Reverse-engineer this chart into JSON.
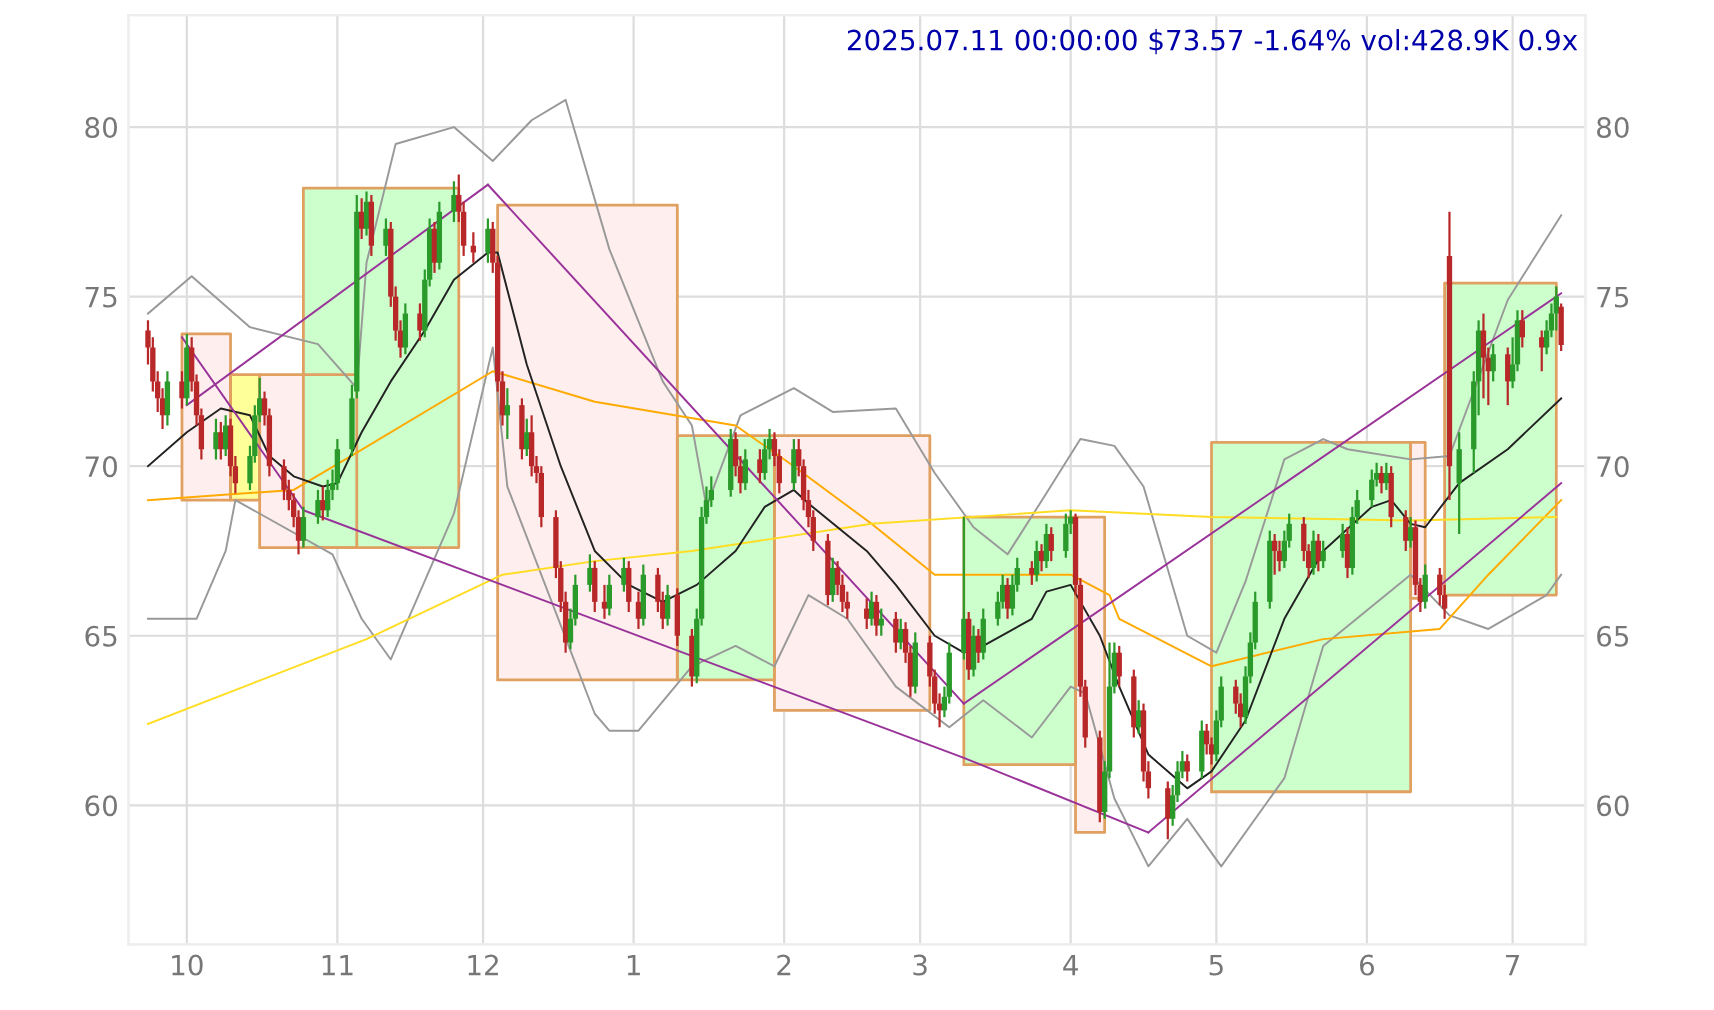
{
  "chart_data": {
    "type": "candlestick",
    "title": "2025.07.11 00:00:00 $73.57 -1.64% vol:428.9K 0.9x",
    "x": [
      "2024-09-23",
      "2024-09-24",
      "2024-09-25",
      "2024-09-26",
      "2024-09-27",
      "2024-09-30",
      "2024-10-01",
      "2024-10-02",
      "2024-10-03",
      "2024-10-04",
      "2024-10-07",
      "2024-10-08",
      "2024-10-09",
      "2024-10-10",
      "2024-10-11",
      "2024-10-14",
      "2024-10-15",
      "2024-10-16",
      "2024-10-17",
      "2024-10-18",
      "2024-10-21",
      "2024-10-22",
      "2024-10-23",
      "2024-10-24",
      "2024-10-25",
      "2024-10-28",
      "2024-10-29",
      "2024-10-30",
      "2024-10-31",
      "2024-11-01",
      "2024-11-04",
      "2024-11-05",
      "2024-11-06",
      "2024-11-07",
      "2024-11-08",
      "2024-11-11",
      "2024-11-12",
      "2024-11-13",
      "2024-11-14",
      "2024-11-15",
      "2024-11-18",
      "2024-11-19",
      "2024-11-20",
      "2024-11-21",
      "2024-11-22",
      "2024-11-25",
      "2024-11-26",
      "2024-11-27",
      "2024-11-29",
      "2024-12-02",
      "2024-12-03",
      "2024-12-04",
      "2024-12-05",
      "2024-12-06",
      "2024-12-09",
      "2024-12-10",
      "2024-12-11",
      "2024-12-12",
      "2024-12-13",
      "2024-12-16",
      "2024-12-17",
      "2024-12-18",
      "2024-12-19",
      "2024-12-20",
      "2024-12-23",
      "2024-12-24",
      "2024-12-26",
      "2024-12-27",
      "2024-12-30",
      "2024-12-31",
      "2025-01-02",
      "2025-01-03",
      "2025-01-06",
      "2025-01-07",
      "2025-01-08",
      "2025-01-10",
      "2025-01-13",
      "2025-01-14",
      "2025-01-15",
      "2025-01-16",
      "2025-01-17",
      "2025-01-21",
      "2025-01-22",
      "2025-01-23",
      "2025-01-24",
      "2025-01-27",
      "2025-01-28",
      "2025-01-29",
      "2025-01-30",
      "2025-01-31",
      "2025-02-03",
      "2025-02-04",
      "2025-02-05",
      "2025-02-06",
      "2025-02-07",
      "2025-02-10",
      "2025-02-11",
      "2025-02-12",
      "2025-02-13",
      "2025-02-14",
      "2025-02-18",
      "2025-02-19",
      "2025-02-20",
      "2025-02-21",
      "2025-02-24",
      "2025-02-25",
      "2025-02-26",
      "2025-02-27",
      "2025-02-28",
      "2025-03-03",
      "2025-03-04",
      "2025-03-05",
      "2025-03-06",
      "2025-03-07",
      "2025-03-10",
      "2025-03-11",
      "2025-03-12",
      "2025-03-13",
      "2025-03-14",
      "2025-03-17",
      "2025-03-18",
      "2025-03-19",
      "2025-03-20",
      "2025-03-21",
      "2025-03-24",
      "2025-03-25",
      "2025-03-26",
      "2025-03-27",
      "2025-03-28",
      "2025-03-31",
      "2025-04-01",
      "2025-04-02",
      "2025-04-03",
      "2025-04-04",
      "2025-04-07",
      "2025-04-08",
      "2025-04-09",
      "2025-04-10",
      "2025-04-11",
      "2025-04-14",
      "2025-04-15",
      "2025-04-16",
      "2025-04-17",
      "2025-04-21",
      "2025-04-22",
      "2025-04-23",
      "2025-04-24",
      "2025-04-25",
      "2025-04-28",
      "2025-04-29",
      "2025-04-30",
      "2025-05-01",
      "2025-05-02",
      "2025-05-05",
      "2025-05-06",
      "2025-05-07",
      "2025-05-08",
      "2025-05-09",
      "2025-05-12",
      "2025-05-13",
      "2025-05-14",
      "2025-05-15",
      "2025-05-16",
      "2025-05-19",
      "2025-05-20",
      "2025-05-21",
      "2025-05-22",
      "2025-05-23",
      "2025-05-27",
      "2025-05-28",
      "2025-05-29",
      "2025-05-30",
      "2025-06-02",
      "2025-06-03",
      "2025-06-04",
      "2025-06-05",
      "2025-06-06",
      "2025-06-09",
      "2025-06-10",
      "2025-06-11",
      "2025-06-12",
      "2025-06-13",
      "2025-06-16",
      "2025-06-17",
      "2025-06-18",
      "2025-06-20",
      "2025-06-23",
      "2025-06-24",
      "2025-06-25",
      "2025-06-26",
      "2025-06-27",
      "2025-06-30",
      "2025-07-01",
      "2025-07-02",
      "2025-07-03",
      "2025-07-07",
      "2025-07-08",
      "2025-07-09",
      "2025-07-10",
      "2025-07-11"
    ],
    "ohlc": [
      [
        74.0,
        74.3,
        73.0,
        73.5
      ],
      [
        73.5,
        73.8,
        72.2,
        72.5
      ],
      [
        72.5,
        72.8,
        71.6,
        72.0
      ],
      [
        72.0,
        72.3,
        71.1,
        71.5
      ],
      [
        71.5,
        72.8,
        71.2,
        72.5
      ],
      [
        72.5,
        72.8,
        71.7,
        72.0
      ],
      [
        72.0,
        73.9,
        71.8,
        73.5
      ],
      [
        73.5,
        73.8,
        72.2,
        72.5
      ],
      [
        72.5,
        72.7,
        71.2,
        71.5
      ],
      [
        71.5,
        71.7,
        70.2,
        70.5
      ],
      [
        70.5,
        71.4,
        70.2,
        71.0
      ],
      [
        71.0,
        71.3,
        70.2,
        70.5
      ],
      [
        70.5,
        71.5,
        70.3,
        71.2
      ],
      [
        71.2,
        71.4,
        69.7,
        70.0
      ],
      [
        70.0,
        70.3,
        69.2,
        69.5
      ],
      [
        69.5,
        70.6,
        69.3,
        70.3
      ],
      [
        70.3,
        71.8,
        70.1,
        71.5
      ],
      [
        71.5,
        72.6,
        71.3,
        72.0
      ],
      [
        72.0,
        72.2,
        71.2,
        71.5
      ],
      [
        71.5,
        71.7,
        69.7,
        70.0
      ],
      [
        70.0,
        70.2,
        69.0,
        69.3
      ],
      [
        69.3,
        69.6,
        68.7,
        69.0
      ],
      [
        69.0,
        69.2,
        68.2,
        68.5
      ],
      [
        68.5,
        68.7,
        67.4,
        67.8
      ],
      [
        67.8,
        68.8,
        67.6,
        68.5
      ],
      [
        68.5,
        69.3,
        68.3,
        69.0
      ],
      [
        69.0,
        69.4,
        68.4,
        68.7
      ],
      [
        68.7,
        69.6,
        68.5,
        69.3
      ],
      [
        69.3,
        69.9,
        69.0,
        69.5
      ],
      [
        69.5,
        70.8,
        69.3,
        70.5
      ],
      [
        70.5,
        72.4,
        70.3,
        72.0
      ],
      [
        72.2,
        78.0,
        72.0,
        77.5
      ],
      [
        77.5,
        77.9,
        76.7,
        77.0
      ],
      [
        77.0,
        78.1,
        76.8,
        77.8
      ],
      [
        77.8,
        78.0,
        76.2,
        76.5
      ],
      [
        76.5,
        77.3,
        76.2,
        77.0
      ],
      [
        77.0,
        77.2,
        74.7,
        75.0
      ],
      [
        75.0,
        75.3,
        73.7,
        74.0
      ],
      [
        74.0,
        74.3,
        73.2,
        73.5
      ],
      [
        73.5,
        74.8,
        73.3,
        74.5
      ],
      [
        74.5,
        74.8,
        73.7,
        74.0
      ],
      [
        74.0,
        75.8,
        73.8,
        75.5
      ],
      [
        75.5,
        77.3,
        75.3,
        77.0
      ],
      [
        77.0,
        77.2,
        75.7,
        76.0
      ],
      [
        76.0,
        77.8,
        75.8,
        77.5
      ],
      [
        77.5,
        78.4,
        77.2,
        78.0
      ],
      [
        78.0,
        78.6,
        77.2,
        77.5
      ],
      [
        77.5,
        77.8,
        76.2,
        76.5
      ],
      [
        76.5,
        76.9,
        76.0,
        76.3
      ],
      [
        76.3,
        77.3,
        76.0,
        77.0
      ],
      [
        77.0,
        77.2,
        75.7,
        76.0
      ],
      [
        76.0,
        76.2,
        72.2,
        72.5
      ],
      [
        72.5,
        72.8,
        71.2,
        71.5
      ],
      [
        71.5,
        72.3,
        70.8,
        71.8
      ],
      [
        71.8,
        72.0,
        70.2,
        70.5
      ],
      [
        70.5,
        71.4,
        70.3,
        71.0
      ],
      [
        71.0,
        71.5,
        69.7,
        70.0
      ],
      [
        70.0,
        70.3,
        69.5,
        69.8
      ],
      [
        69.8,
        70.0,
        68.2,
        68.5
      ],
      [
        68.5,
        68.7,
        66.7,
        67.0
      ],
      [
        67.0,
        67.2,
        65.7,
        66.0
      ],
      [
        66.0,
        66.3,
        64.5,
        64.8
      ],
      [
        64.8,
        65.8,
        64.6,
        65.5
      ],
      [
        65.5,
        66.8,
        65.3,
        66.5
      ],
      [
        66.5,
        67.4,
        66.3,
        67.0
      ],
      [
        67.0,
        67.2,
        65.7,
        66.0
      ],
      [
        66.0,
        66.5,
        65.5,
        65.8
      ],
      [
        65.8,
        66.8,
        65.6,
        66.5
      ],
      [
        66.5,
        67.3,
        66.3,
        67.0
      ],
      [
        67.0,
        67.2,
        65.7,
        66.0
      ],
      [
        66.0,
        66.3,
        65.2,
        65.5
      ],
      [
        65.5,
        67.1,
        65.3,
        66.8
      ],
      [
        66.8,
        67.0,
        65.7,
        66.0
      ],
      [
        66.0,
        66.3,
        65.2,
        65.5
      ],
      [
        65.5,
        66.5,
        65.3,
        66.2
      ],
      [
        66.2,
        66.4,
        64.7,
        65.0
      ],
      [
        65.0,
        65.2,
        63.5,
        63.8
      ],
      [
        63.8,
        65.8,
        63.6,
        65.5
      ],
      [
        65.5,
        68.8,
        65.3,
        68.5
      ],
      [
        68.5,
        69.4,
        68.3,
        69.0
      ],
      [
        69.0,
        69.7,
        68.8,
        69.3
      ],
      [
        69.3,
        71.1,
        69.1,
        70.8
      ],
      [
        70.8,
        71.0,
        69.7,
        70.0
      ],
      [
        70.0,
        70.3,
        69.2,
        69.5
      ],
      [
        69.5,
        70.5,
        69.3,
        70.2
      ],
      [
        70.2,
        70.5,
        69.5,
        69.8
      ],
      [
        69.8,
        70.8,
        69.6,
        70.5
      ],
      [
        70.5,
        71.1,
        70.2,
        70.8
      ],
      [
        70.8,
        71.0,
        70.0,
        70.3
      ],
      [
        70.3,
        70.5,
        69.2,
        69.5
      ],
      [
        69.5,
        70.8,
        69.3,
        70.5
      ],
      [
        70.5,
        70.8,
        69.7,
        70.0
      ],
      [
        70.0,
        70.2,
        68.7,
        69.0
      ],
      [
        69.0,
        69.3,
        68.2,
        68.5
      ],
      [
        68.5,
        68.7,
        67.5,
        67.8
      ],
      [
        67.8,
        68.0,
        65.9,
        66.2
      ],
      [
        66.2,
        67.3,
        66.0,
        67.0
      ],
      [
        67.0,
        67.2,
        66.2,
        66.5
      ],
      [
        66.5,
        66.8,
        65.7,
        66.0
      ],
      [
        66.0,
        66.3,
        65.5,
        65.8
      ],
      [
        65.8,
        66.1,
        65.2,
        65.5
      ],
      [
        65.5,
        66.3,
        65.3,
        66.0
      ],
      [
        66.0,
        66.2,
        65.0,
        65.3
      ],
      [
        65.3,
        65.8,
        65.0,
        65.5
      ],
      [
        65.5,
        65.7,
        64.5,
        64.8
      ],
      [
        64.8,
        65.5,
        64.6,
        65.2
      ],
      [
        65.2,
        65.4,
        64.2,
        64.5
      ],
      [
        64.5,
        64.7,
        63.2,
        63.5
      ],
      [
        63.5,
        65.1,
        63.3,
        64.8
      ],
      [
        64.8,
        65.0,
        63.5,
        63.8
      ],
      [
        63.8,
        64.0,
        62.7,
        63.0
      ],
      [
        63.0,
        63.3,
        62.3,
        62.8
      ],
      [
        62.8,
        63.5,
        62.6,
        63.2
      ],
      [
        63.2,
        64.8,
        63.0,
        64.5
      ],
      [
        64.5,
        68.5,
        64.3,
        65.5
      ],
      [
        65.5,
        65.7,
        63.7,
        64.0
      ],
      [
        64.0,
        65.3,
        63.8,
        65.0
      ],
      [
        65.0,
        65.2,
        64.2,
        64.5
      ],
      [
        64.5,
        65.8,
        64.3,
        65.5
      ],
      [
        65.5,
        66.3,
        65.3,
        66.0
      ],
      [
        66.0,
        66.8,
        65.8,
        66.5
      ],
      [
        66.5,
        66.7,
        65.5,
        65.8
      ],
      [
        65.8,
        66.8,
        65.6,
        66.5
      ],
      [
        66.5,
        67.3,
        66.3,
        67.0
      ],
      [
        67.0,
        67.2,
        66.5,
        66.8
      ],
      [
        66.8,
        67.8,
        66.6,
        67.5
      ],
      [
        67.5,
        67.7,
        66.9,
        67.2
      ],
      [
        67.2,
        68.3,
        67.0,
        68.0
      ],
      [
        68.0,
        68.2,
        67.2,
        67.5
      ],
      [
        67.5,
        68.6,
        67.3,
        68.3
      ],
      [
        68.3,
        68.7,
        68.0,
        68.5
      ],
      [
        68.5,
        68.6,
        66.2,
        66.5
      ],
      [
        66.5,
        66.7,
        63.2,
        63.5
      ],
      [
        63.5,
        63.7,
        61.7,
        62.0
      ],
      [
        62.0,
        62.2,
        59.5,
        59.8
      ],
      [
        59.8,
        61.3,
        59.6,
        61.0
      ],
      [
        61.0,
        64.8,
        60.8,
        63.5
      ],
      [
        63.5,
        64.8,
        63.3,
        64.5
      ],
      [
        64.5,
        64.7,
        63.5,
        63.8
      ],
      [
        63.8,
        64.0,
        62.0,
        62.3
      ],
      [
        62.3,
        63.1,
        62.1,
        62.8
      ],
      [
        62.8,
        63.0,
        60.7,
        61.0
      ],
      [
        61.0,
        61.3,
        60.2,
        60.5
      ],
      [
        60.5,
        60.7,
        59.0,
        59.6
      ],
      [
        59.6,
        60.6,
        59.4,
        60.3
      ],
      [
        60.3,
        61.3,
        60.1,
        61.0
      ],
      [
        61.0,
        61.6,
        60.8,
        61.3
      ],
      [
        61.3,
        61.5,
        60.7,
        61.0
      ],
      [
        61.0,
        62.5,
        60.8,
        62.2
      ],
      [
        62.2,
        62.4,
        61.5,
        61.8
      ],
      [
        61.8,
        62.0,
        61.2,
        61.5
      ],
      [
        61.5,
        62.8,
        61.3,
        62.5
      ],
      [
        62.5,
        63.8,
        62.3,
        63.5
      ],
      [
        63.5,
        63.7,
        62.7,
        63.0
      ],
      [
        63.0,
        63.3,
        62.3,
        62.6
      ],
      [
        62.6,
        64.1,
        62.4,
        63.8
      ],
      [
        63.8,
        65.1,
        63.6,
        64.8
      ],
      [
        64.8,
        66.3,
        64.6,
        66.0
      ],
      [
        66.0,
        68.1,
        65.8,
        67.8
      ],
      [
        67.8,
        68.0,
        66.8,
        67.5
      ],
      [
        67.5,
        67.8,
        66.9,
        67.2
      ],
      [
        67.2,
        68.1,
        67.0,
        67.8
      ],
      [
        67.8,
        68.6,
        67.6,
        68.3
      ],
      [
        68.3,
        68.5,
        67.2,
        67.5
      ],
      [
        67.5,
        67.7,
        66.7,
        67.0
      ],
      [
        67.0,
        68.1,
        66.8,
        67.8
      ],
      [
        67.8,
        68.0,
        66.9,
        67.2
      ],
      [
        67.2,
        67.8,
        67.0,
        67.5
      ],
      [
        67.5,
        68.3,
        67.3,
        68.0
      ],
      [
        68.0,
        68.2,
        66.7,
        67.0
      ],
      [
        67.0,
        68.8,
        66.8,
        68.5
      ],
      [
        68.5,
        69.3,
        68.3,
        69.0
      ],
      [
        69.0,
        69.9,
        68.8,
        69.6
      ],
      [
        69.6,
        70.1,
        69.4,
        69.8
      ],
      [
        69.8,
        70.0,
        69.2,
        69.5
      ],
      [
        69.5,
        70.1,
        69.3,
        69.8
      ],
      [
        69.8,
        70.0,
        68.2,
        68.5
      ],
      [
        68.5,
        68.7,
        67.5,
        67.8
      ],
      [
        67.8,
        68.5,
        67.6,
        68.2
      ],
      [
        68.2,
        68.4,
        66.2,
        66.5
      ],
      [
        66.5,
        66.7,
        65.7,
        66.0
      ],
      [
        66.0,
        67.1,
        65.8,
        66.8
      ],
      [
        66.8,
        67.0,
        65.9,
        66.2
      ],
      [
        66.2,
        66.5,
        65.5,
        65.8
      ],
      [
        76.2,
        77.5,
        69.0,
        70.0
      ],
      [
        69.5,
        71.0,
        68.0,
        70.5
      ],
      [
        70.5,
        72.8,
        69.8,
        72.5
      ],
      [
        72.5,
        74.3,
        71.5,
        74.0
      ],
      [
        74.0,
        74.5,
        72.0,
        73.2
      ],
      [
        73.2,
        73.5,
        71.8,
        72.8
      ],
      [
        72.8,
        73.6,
        72.5,
        73.3
      ],
      [
        73.3,
        73.5,
        71.8,
        72.5
      ],
      [
        72.5,
        73.8,
        72.3,
        73.0
      ],
      [
        73.0,
        74.6,
        72.8,
        74.3
      ],
      [
        74.3,
        74.6,
        73.5,
        73.8
      ],
      [
        73.8,
        74.0,
        72.8,
        73.5
      ],
      [
        73.5,
        74.3,
        73.3,
        74.0
      ],
      [
        74.0,
        74.8,
        73.8,
        74.5
      ],
      [
        74.5,
        75.3,
        74.0,
        75.0
      ],
      [
        74.7,
        74.8,
        73.4,
        73.57
      ]
    ],
    "series": [
      {
        "type": "area",
        "x": [
          "2024-09-30",
          "2024-09-30",
          "2024-10-10",
          "2024-10-10",
          "2024-09-30"
        ],
        "values": [
          69.0,
          73.9,
          73.9,
          69.0,
          69.0
        ],
        "color": "#ffeeee"
      },
      {
        "type": "area",
        "x": [
          "2024-10-10",
          "2024-10-10",
          "2024-10-16",
          "2024-10-16",
          "2024-10-10"
        ],
        "values": [
          69.0,
          72.7,
          72.7,
          69.0,
          69.0
        ],
        "color": "#ffff99"
      },
      {
        "type": "area",
        "x": [
          "2024-10-16",
          "2024-10-16",
          "2024-11-05",
          "2024-11-05",
          "2024-10-16"
        ],
        "values": [
          67.6,
          72.7,
          72.7,
          67.6,
          67.6
        ],
        "color": "#ffeeee"
      },
      {
        "type": "area",
        "x": [
          "2024-10-25",
          "2024-10-25",
          "2024-11-26",
          "2024-11-26",
          "2024-10-25"
        ],
        "values": [
          67.6,
          78.2,
          78.2,
          67.6,
          67.6
        ],
        "color": "#ccffcc"
      },
      {
        "type": "area",
        "x": [
          "2024-12-04",
          "2024-12-04",
          "2025-01-10",
          "2025-01-10",
          "2024-12-04"
        ],
        "values": [
          63.7,
          77.7,
          77.7,
          63.7,
          63.7
        ],
        "color": "#ffeeee"
      },
      {
        "type": "area",
        "x": [
          "2025-01-10",
          "2025-01-10",
          "2025-01-30",
          "2025-01-30",
          "2025-01-10"
        ],
        "values": [
          63.7,
          70.9,
          70.9,
          63.7,
          63.7
        ],
        "color": "#ccffcc"
      },
      {
        "type": "area",
        "x": [
          "2025-01-30",
          "2025-01-30",
          "2025-03-03",
          "2025-03-03",
          "2025-01-30"
        ],
        "values": [
          62.8,
          70.9,
          70.9,
          62.8,
          62.8
        ],
        "color": "#ffeeee"
      },
      {
        "type": "area",
        "x": [
          "2025-03-10",
          "2025-03-10",
          "2025-04-02",
          "2025-04-02",
          "2025-03-10"
        ],
        "values": [
          61.2,
          68.5,
          68.5,
          61.2,
          61.2
        ],
        "color": "#ccffcc"
      },
      {
        "type": "area",
        "x": [
          "2025-04-02",
          "2025-04-02",
          "2025-04-08",
          "2025-04-08",
          "2025-04-02"
        ],
        "values": [
          59.2,
          68.5,
          68.5,
          59.2,
          59.2
        ],
        "color": "#ffeeee"
      },
      {
        "type": "area",
        "x": [
          "2025-04-30",
          "2025-04-30",
          "2025-06-10",
          "2025-06-10",
          "2025-04-30"
        ],
        "values": [
          60.4,
          70.7,
          70.7,
          60.4,
          60.4
        ],
        "color": "#ccffcc"
      },
      {
        "type": "area",
        "x": [
          "2025-06-10",
          "2025-06-10",
          "2025-06-13",
          "2025-06-13",
          "2025-06-10"
        ],
        "values": [
          66.1,
          70.7,
          70.7,
          66.1,
          66.1
        ],
        "color": "#ffeeee"
      },
      {
        "type": "area",
        "x": [
          "2025-06-17",
          "2025-06-17",
          "2025-07-10",
          "2025-07-10",
          "2025-06-17"
        ],
        "values": [
          66.2,
          75.4,
          75.4,
          66.2,
          66.2
        ],
        "color": "#ccffcc"
      },
      {
        "type": "line",
        "color": "#999999",
        "x": [
          "2024-09-23",
          "2024-10-02",
          "2024-10-14",
          "2024-10-28",
          "2024-11-05",
          "2024-11-07",
          "2024-11-13",
          "2024-11-25",
          "2024-12-03",
          "2024-12-11",
          "2024-12-18",
          "2024-12-27",
          "2025-01-07",
          "2025-01-13",
          "2025-01-16",
          "2025-01-23",
          "2025-02-03",
          "2025-02-11",
          "2025-02-24",
          "2025-03-04",
          "2025-03-12",
          "2025-03-19",
          "2025-03-27",
          "2025-04-03",
          "2025-04-10",
          "2025-04-16",
          "2025-04-25",
          "2025-05-01",
          "2025-05-07",
          "2025-05-15",
          "2025-05-23",
          "2025-05-28",
          "2025-06-10",
          "2025-06-18",
          "2025-06-30",
          "2025-07-11"
        ],
        "values": [
          74.5,
          75.6,
          74.1,
          73.6,
          72.3,
          76.0,
          79.5,
          80.0,
          79.0,
          80.2,
          80.8,
          76.4,
          72.5,
          71.2,
          68.8,
          71.5,
          72.3,
          71.6,
          71.7,
          69.8,
          68.2,
          67.4,
          69.2,
          70.8,
          70.6,
          69.4,
          65.0,
          64.5,
          66.6,
          70.2,
          70.8,
          70.5,
          70.2,
          70.3,
          74.9,
          77.4
        ]
      },
      {
        "type": "line",
        "color": "#999999",
        "x": [
          "2024-09-23",
          "2024-10-03",
          "2024-10-09",
          "2024-10-11",
          "2024-10-31",
          "2024-11-06",
          "2024-11-12",
          "2024-11-25",
          "2024-12-03",
          "2024-12-06",
          "2024-12-24",
          "2024-12-27",
          "2025-01-02",
          "2025-01-13",
          "2025-01-22",
          "2025-01-30",
          "2025-02-06",
          "2025-02-14",
          "2025-02-24",
          "2025-03-07",
          "2025-03-14",
          "2025-03-24",
          "2025-04-01",
          "2025-04-04",
          "2025-04-10",
          "2025-04-17",
          "2025-04-25",
          "2025-05-02",
          "2025-05-15",
          "2025-05-23",
          "2025-06-10",
          "2025-06-18",
          "2025-06-26",
          "2025-07-08",
          "2025-07-11"
        ],
        "values": [
          65.5,
          65.5,
          67.5,
          69.0,
          67.4,
          65.5,
          64.3,
          68.6,
          73.5,
          69.4,
          62.7,
          62.2,
          62.2,
          64.1,
          64.7,
          64.1,
          66.2,
          65.5,
          63.5,
          62.3,
          63.1,
          62.0,
          63.5,
          63.3,
          60.2,
          58.2,
          59.6,
          58.2,
          60.8,
          64.7,
          66.8,
          65.6,
          65.2,
          66.2,
          66.8
        ]
      },
      {
        "type": "line",
        "color": "#ffaa00",
        "x": [
          "2024-09-23",
          "2024-10-23",
          "2024-11-05",
          "2024-12-03",
          "2024-12-24",
          "2025-01-22",
          "2025-02-03",
          "2025-02-19",
          "2025-03-04",
          "2025-04-01",
          "2025-04-09",
          "2025-04-11",
          "2025-04-30",
          "2025-05-23",
          "2025-06-16",
          "2025-06-26",
          "2025-07-11"
        ],
        "values": [
          69.0,
          69.3,
          70.4,
          72.8,
          71.9,
          71.2,
          70.0,
          68.3,
          66.8,
          66.8,
          66.2,
          65.5,
          64.1,
          64.9,
          65.2,
          66.8,
          69.0
        ]
      },
      {
        "type": "line",
        "color": "#ffdd22",
        "x": [
          "2024-09-23",
          "2024-11-07",
          "2024-12-05",
          "2024-12-24",
          "2025-01-13",
          "2025-02-19",
          "2025-04-01",
          "2025-04-30",
          "2025-06-10",
          "2025-07-10"
        ],
        "values": [
          62.4,
          64.9,
          66.8,
          67.2,
          67.5,
          68.3,
          68.7,
          68.5,
          68.4,
          68.5
        ]
      },
      {
        "type": "line",
        "color": "#222222",
        "x": [
          "2024-09-23",
          "2024-10-01",
          "2024-10-08",
          "2024-10-14",
          "2024-10-18",
          "2024-10-23",
          "2024-10-29",
          "2024-11-01",
          "2024-11-06",
          "2024-11-12",
          "2024-11-19",
          "2024-11-25",
          "2024-12-02",
          "2024-12-04",
          "2024-12-10",
          "2024-12-17",
          "2024-12-24",
          "2024-12-31",
          "2025-01-07",
          "2025-01-14",
          "2025-01-22",
          "2025-01-28",
          "2025-02-03",
          "2025-02-06",
          "2025-02-18",
          "2025-02-24",
          "2025-03-04",
          "2025-03-10",
          "2025-03-14",
          "2025-03-24",
          "2025-03-27",
          "2025-04-01",
          "2025-04-07",
          "2025-04-11",
          "2025-04-17",
          "2025-04-25",
          "2025-04-30",
          "2025-05-07",
          "2025-05-15",
          "2025-05-23",
          "2025-06-02",
          "2025-06-06",
          "2025-06-10",
          "2025-06-13",
          "2025-06-20",
          "2025-06-30",
          "2025-07-11"
        ],
        "values": [
          70.0,
          71.0,
          71.7,
          71.5,
          70.3,
          69.7,
          69.4,
          69.5,
          71.0,
          72.5,
          74.0,
          75.5,
          76.3,
          76.3,
          73.0,
          70.0,
          67.5,
          66.5,
          66.0,
          66.5,
          67.5,
          68.8,
          69.3,
          68.9,
          67.5,
          66.5,
          65.0,
          64.5,
          64.7,
          65.5,
          66.3,
          66.5,
          65.0,
          63.5,
          61.5,
          60.5,
          61.0,
          62.5,
          65.5,
          67.5,
          68.8,
          69.0,
          68.3,
          68.2,
          69.5,
          70.5,
          72.0
        ]
      },
      {
        "type": "line",
        "color": "#993399",
        "x": [
          "2024-10-01",
          "2024-12-02"
        ],
        "values": [
          71.8,
          78.3
        ]
      },
      {
        "type": "line",
        "color": "#993399",
        "x": [
          "2024-12-02",
          "2025-03-10"
        ],
        "values": [
          78.3,
          63.0
        ]
      },
      {
        "type": "line",
        "color": "#993399",
        "x": [
          "2024-09-30",
          "2024-10-25",
          "2025-03-10",
          "2025-04-17"
        ],
        "values": [
          73.8,
          68.7,
          61.4,
          59.2
        ]
      },
      {
        "type": "line",
        "color": "#993399",
        "x": [
          "2025-03-10",
          "2025-07-11"
        ],
        "values": [
          63.0,
          75.1
        ]
      },
      {
        "type": "line",
        "color": "#993399",
        "x": [
          "2025-04-17",
          "2025-07-11"
        ],
        "values": [
          59.2,
          69.5
        ]
      }
    ],
    "xlim": [
      "2024-09-19",
      "2025-07-16"
    ],
    "xticks": [
      {
        "value": "2024-10-01",
        "label": "10"
      },
      {
        "value": "2024-11-01",
        "label": "11"
      },
      {
        "value": "2024-12-01",
        "label": "12"
      },
      {
        "value": "2025-01-01",
        "label": "1"
      },
      {
        "value": "2025-02-01",
        "label": "2"
      },
      {
        "value": "2025-03-01",
        "label": "3"
      },
      {
        "value": "2025-04-01",
        "label": "4"
      },
      {
        "value": "2025-05-01",
        "label": "5"
      },
      {
        "value": "2025-06-01",
        "label": "6"
      },
      {
        "value": "2025-07-01",
        "label": "7"
      }
    ],
    "ylim": [
      55.9,
      83.3
    ],
    "yticks": [
      60,
      65,
      70,
      75,
      80
    ],
    "y2lim": [
      55.9,
      83.3
    ],
    "y2ticks": [
      60,
      65,
      70,
      75,
      80
    ],
    "grid": true
  }
}
